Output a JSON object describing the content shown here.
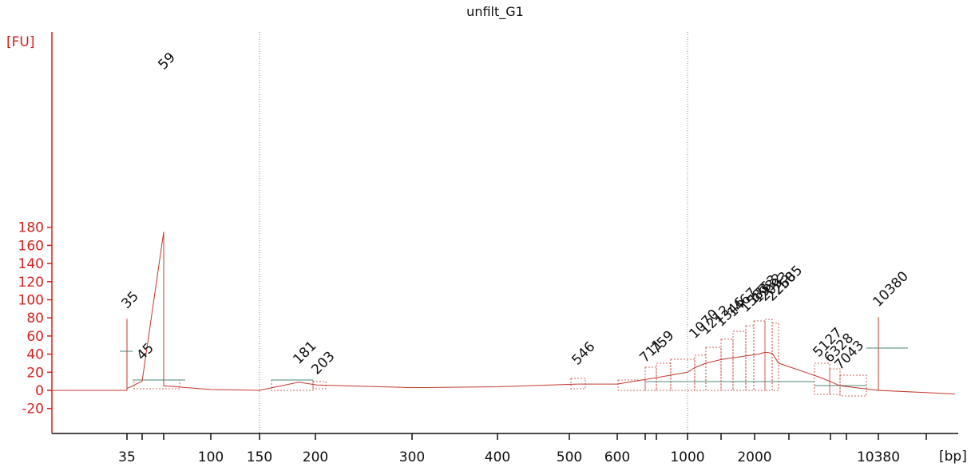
{
  "chart_data": {
    "type": "line",
    "title": "unfilt_G1",
    "ylabel": "[FU]",
    "xlabel": "[bp]",
    "ylim": [
      -22,
      190
    ],
    "yticks": [
      -20,
      0,
      20,
      40,
      60,
      80,
      100,
      120,
      140,
      160,
      180
    ],
    "xtick_labels": [
      "35",
      "100",
      "150",
      "200",
      "300",
      "400",
      "500",
      "600",
      "1000",
      "2000",
      "10380"
    ],
    "grid": false,
    "colors": {
      "trace": "#c0392b",
      "axis": "#d42020",
      "lower_marker": "#118811",
      "upper_marker": "#9b3fe0",
      "baseline": "#4a8a7a"
    },
    "markers": [
      {
        "label": "35",
        "role": "lower marker",
        "y": 79
      },
      {
        "label": "10380",
        "role": "upper marker",
        "y": 81
      }
    ],
    "peak_labels": [
      "45",
      "59",
      "181",
      "203",
      "546",
      "711",
      "759",
      "1070",
      "1212",
      "1346",
      "1467",
      "1583",
      "1763",
      "1932",
      "2093",
      "2250",
      "2685",
      "5127",
      "6328",
      "7043"
    ],
    "series": [
      {
        "points": [
          [
            "start",
            0
          ],
          [
            "35",
            0
          ],
          [
            "35",
            79
          ],
          [
            "35",
            2
          ],
          [
            "45",
            10
          ],
          [
            "59",
            175
          ],
          [
            "59",
            5
          ],
          [
            "100",
            1
          ],
          [
            "150",
            0
          ],
          [
            "181",
            9
          ],
          [
            "203",
            6
          ],
          [
            "300",
            3
          ],
          [
            "400",
            4
          ],
          [
            "546",
            7
          ],
          [
            "600",
            7
          ],
          [
            "711",
            12
          ],
          [
            "759",
            14
          ],
          [
            "1000",
            20
          ],
          [
            "1070",
            25
          ],
          [
            "1212",
            30
          ],
          [
            "1346",
            34
          ],
          [
            "1583",
            38
          ],
          [
            "1932",
            40
          ],
          [
            "2093",
            42
          ],
          [
            "2250",
            41
          ],
          [
            "2685",
            30
          ],
          [
            "5127",
            15
          ],
          [
            "6328",
            10
          ],
          [
            "7043",
            5
          ],
          [
            "10380",
            0
          ],
          [
            "10380",
            81
          ],
          [
            "10380",
            0
          ],
          [
            "end",
            -4
          ]
        ]
      }
    ]
  }
}
